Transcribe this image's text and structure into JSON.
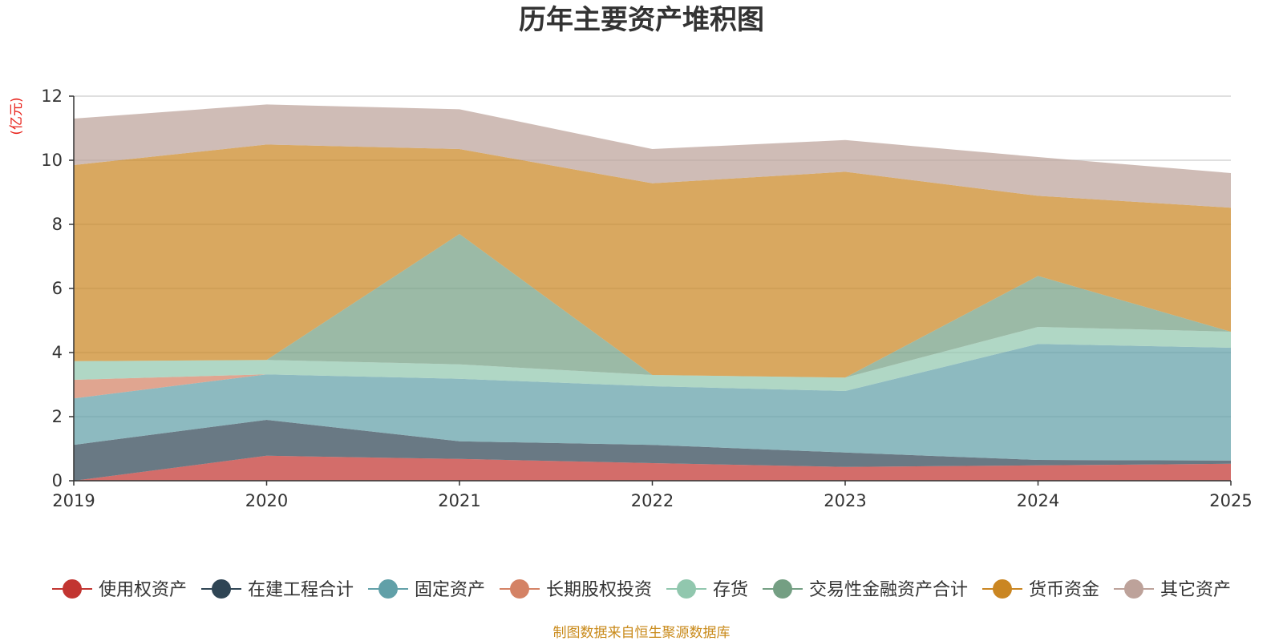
{
  "chart_data": {
    "type": "area",
    "stacked": true,
    "title": "历年主要资产堆积图",
    "ylabel": "(亿元)",
    "xlabel": "",
    "ylim": [
      0,
      12
    ],
    "yticks": [
      0,
      2,
      4,
      6,
      8,
      10,
      12
    ],
    "grid": true,
    "legend_position": "bottom",
    "categories": [
      "2019",
      "2020",
      "2021",
      "2022",
      "2023",
      "2024",
      "2025"
    ],
    "series": [
      {
        "name": "使用权资产",
        "color": "#c23531",
        "values": [
          0.0,
          0.78,
          0.68,
          0.55,
          0.43,
          0.48,
          0.53
        ]
      },
      {
        "name": "在建工程合计",
        "color": "#2f4554",
        "values": [
          1.12,
          1.12,
          0.55,
          0.57,
          0.45,
          0.17,
          0.1
        ]
      },
      {
        "name": "固定资产",
        "color": "#61a0a8",
        "values": [
          1.45,
          1.42,
          1.95,
          1.83,
          1.92,
          3.62,
          3.52
        ]
      },
      {
        "name": "长期股权投资",
        "color": "#d48265",
        "values": [
          0.58,
          0.0,
          0.0,
          0.0,
          0.0,
          0.0,
          0.0
        ]
      },
      {
        "name": "存货",
        "color": "#91c7ae",
        "values": [
          0.58,
          0.45,
          0.45,
          0.35,
          0.42,
          0.53,
          0.5
        ]
      },
      {
        "name": "交易性金融资产合计",
        "color": "#749f83",
        "values": [
          0.0,
          0.0,
          4.07,
          0.0,
          0.0,
          1.59,
          0.0
        ]
      },
      {
        "name": "货币资金",
        "color": "#ca8622",
        "values": [
          6.12,
          6.72,
          2.65,
          5.98,
          6.42,
          2.5,
          3.87
        ]
      },
      {
        "name": "其它资产",
        "color": "#bda29a",
        "values": [
          1.45,
          1.25,
          1.24,
          1.07,
          0.99,
          1.21,
          1.08
        ]
      }
    ]
  },
  "footer": "制图数据来自恒生聚源数据库"
}
